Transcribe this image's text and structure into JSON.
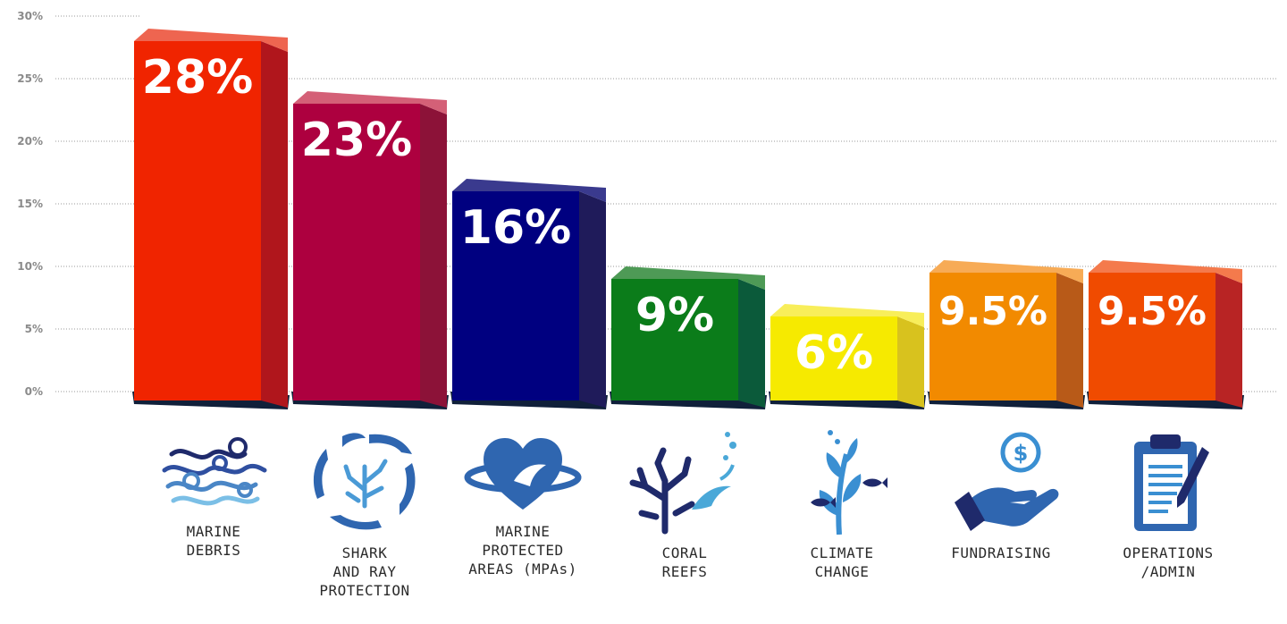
{
  "chart_data": {
    "type": "bar",
    "categories": [
      "MARINE\nDEBRIS",
      "SHARK\nAND RAY\nPROTECTION",
      "MARINE\nPROTECTED\nAREAS (MPAs)",
      "CORAL\nREEFS",
      "CLIMATE\nCHANGE",
      "FUNDRAISING",
      "OPERATIONS\n/ADMIN"
    ],
    "values": [
      28,
      23,
      16,
      9,
      6,
      9.5,
      9.5
    ],
    "value_labels": [
      "28%",
      "23%",
      "16%",
      "9%",
      "6%",
      "9.5%",
      "9.5%"
    ],
    "yticks": [
      "0%",
      "5%",
      "10%",
      "15%",
      "20%",
      "25%",
      "30%"
    ],
    "ylim": [
      0,
      30
    ],
    "grid": "dotted horizontal",
    "colors": {
      "front": [
        "#f02400",
        "#ad003f",
        "#000080",
        "#0b7c1a",
        "#f6ea00",
        "#f28a00",
        "#f04b00"
      ],
      "side": [
        "#b0161c",
        "#8c1238",
        "#1f1b5a",
        "#0b5a3a",
        "#d8c21e",
        "#b85a18",
        "#b82424"
      ],
      "top": [
        "#ee6550",
        "#d46077",
        "#3a3a8e",
        "#4e9a56",
        "#f8ee5a",
        "#f7ab56",
        "#f47a4c"
      ]
    }
  },
  "icons": [
    "marine-debris-icon",
    "shark-ray-icon",
    "marine-protected-area-icon",
    "coral-reef-icon",
    "climate-change-icon",
    "fundraising-icon",
    "operations-admin-icon"
  ]
}
